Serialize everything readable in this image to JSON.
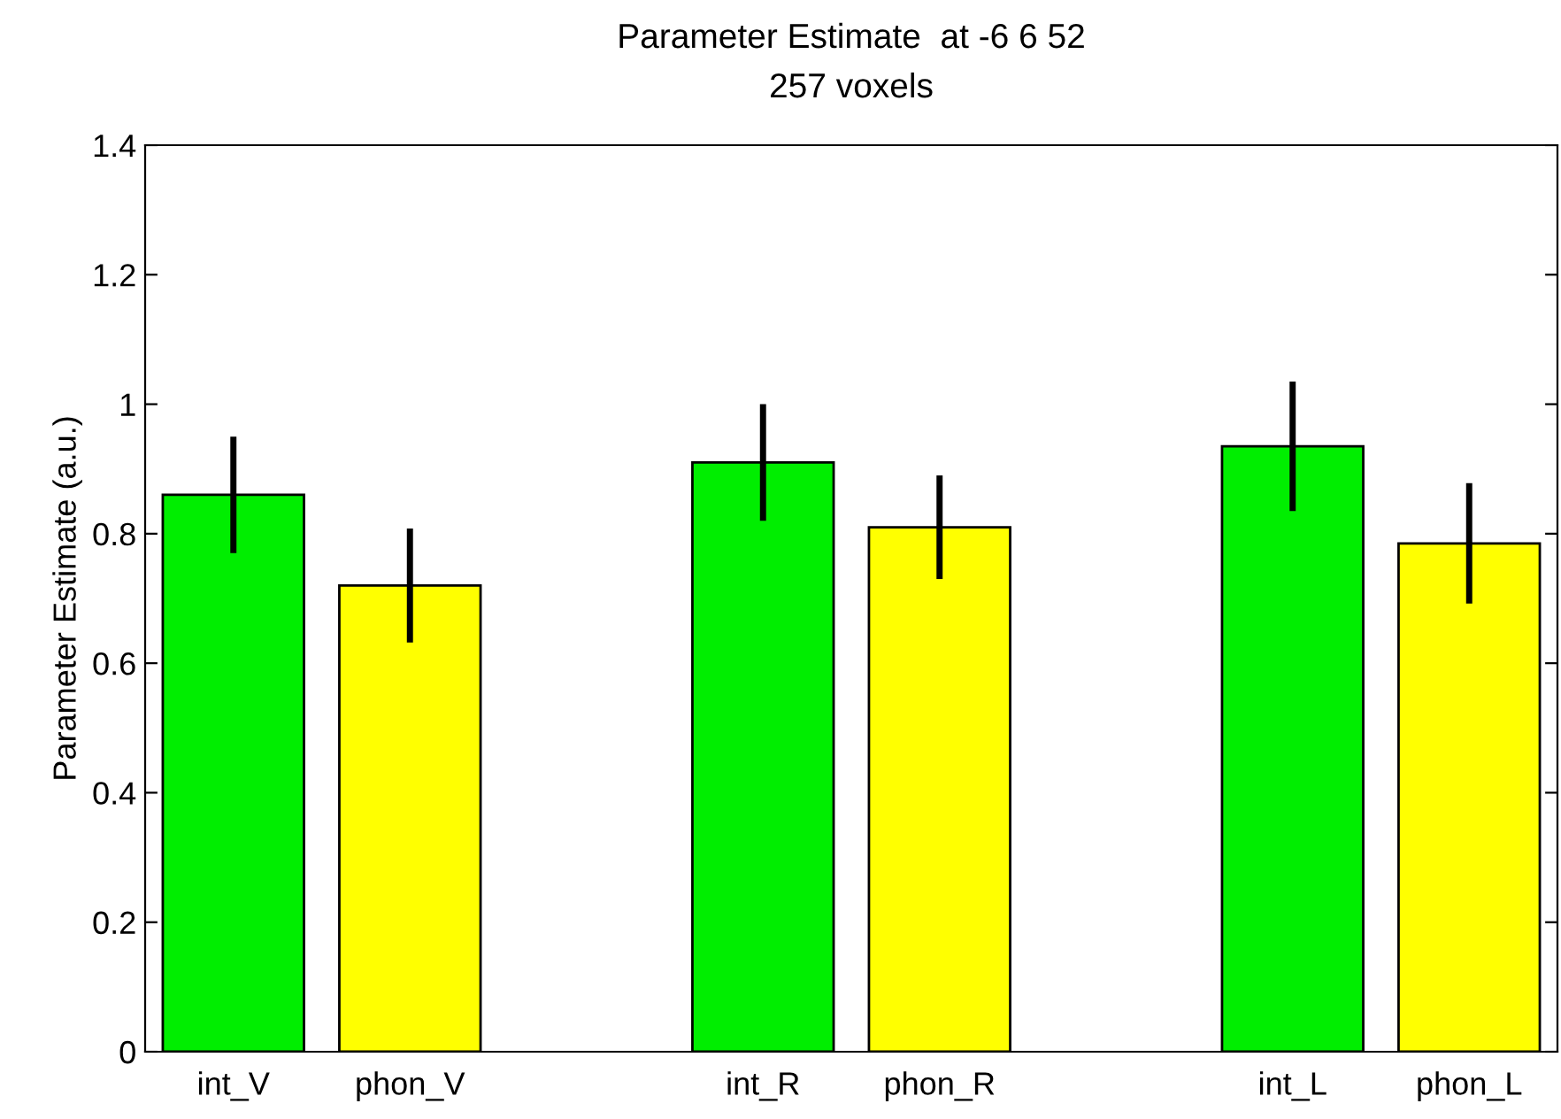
{
  "chart_data": {
    "type": "bar",
    "title": "Parameter Estimate  at -6 6 52",
    "subtitle": "257 voxels",
    "ylabel": "Parameter Estimate (a.u.)",
    "categories": [
      "int_V",
      "phon_V",
      null,
      "int_R",
      "phon_R",
      null,
      "int_L",
      "phon_L"
    ],
    "values": [
      0.86,
      0.72,
      null,
      0.91,
      0.81,
      null,
      0.935,
      0.785
    ],
    "errors": [
      0.09,
      0.088,
      null,
      0.09,
      0.08,
      null,
      0.1,
      0.093
    ],
    "colors": [
      "#00ee00",
      "#ffff00",
      null,
      "#00ee00",
      "#ffff00",
      null,
      "#00ee00",
      "#ffff00"
    ],
    "ylim": [
      0,
      1.4
    ],
    "yticks": [
      0,
      0.2,
      0.4,
      0.6,
      0.8,
      1,
      1.2,
      1.4
    ],
    "grid": false,
    "legend": false
  }
}
